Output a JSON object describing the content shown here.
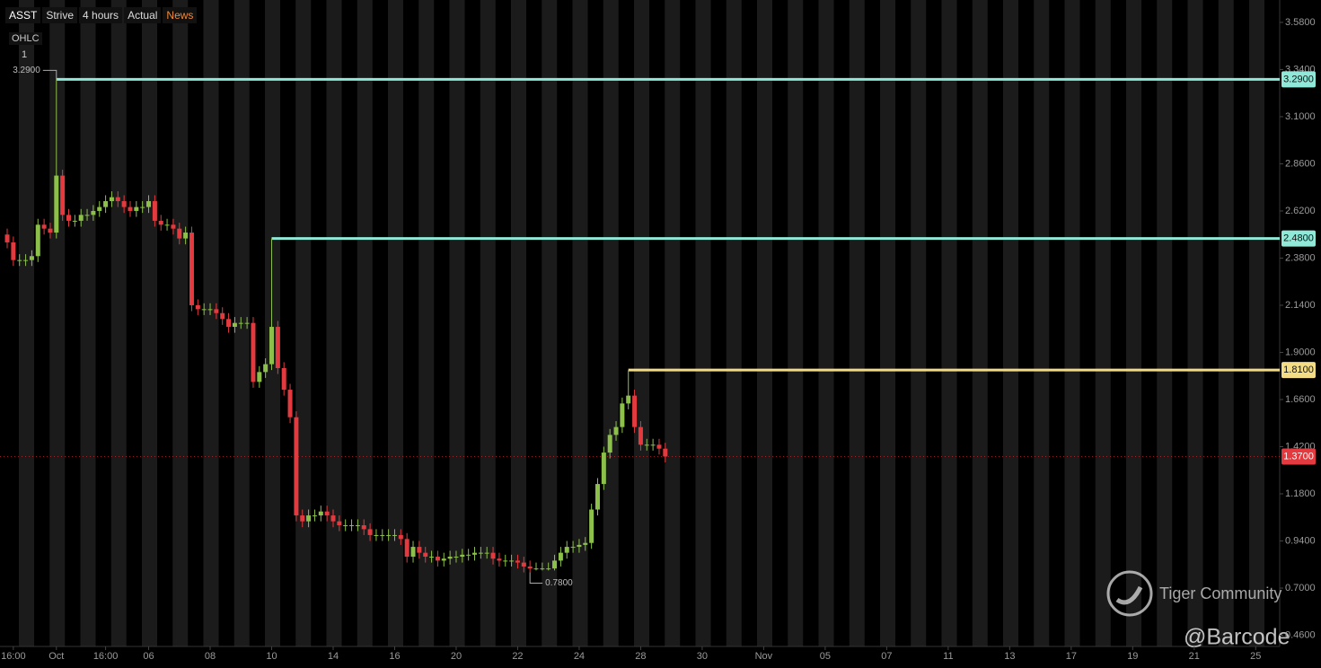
{
  "header": {
    "symbol": "ASST",
    "name": "Strive",
    "interval": "4 hours",
    "mode": "Actual",
    "news": "News",
    "indicator": "OHLC",
    "pane": "1"
  },
  "watermark": {
    "brand": "Tiger Community",
    "handle": "@Barcode"
  },
  "chart_data": {
    "type": "candlestick",
    "up_color": "#8cc04a",
    "down_color": "#e23a3e",
    "xlim": [
      -1.17,
      206.9
    ],
    "xticks": [
      {
        "value": 1,
        "label": "16:00"
      },
      {
        "value": 8,
        "label": "Oct"
      },
      {
        "value": 16,
        "label": "16:00"
      },
      {
        "value": 23,
        "label": "06"
      },
      {
        "value": 33,
        "label": "08"
      },
      {
        "value": 43,
        "label": "10"
      },
      {
        "value": 53,
        "label": "14"
      },
      {
        "value": 63,
        "label": "16"
      },
      {
        "value": 73,
        "label": "20"
      },
      {
        "value": 83,
        "label": "22"
      },
      {
        "value": 93,
        "label": "24"
      },
      {
        "value": 103,
        "label": "28"
      },
      {
        "value": 113,
        "label": "30"
      },
      {
        "value": 123,
        "label": "Nov"
      },
      {
        "value": 133,
        "label": "05"
      },
      {
        "value": 143,
        "label": "07"
      },
      {
        "value": 153,
        "label": "11"
      },
      {
        "value": 163,
        "label": "13"
      },
      {
        "value": 173,
        "label": "17"
      },
      {
        "value": 183,
        "label": "19"
      },
      {
        "value": 193,
        "label": "21"
      },
      {
        "value": 203,
        "label": "25"
      }
    ],
    "ylim": [
      0.403,
      3.694
    ],
    "yticks": [
      {
        "value": 3.58,
        "label": "3.5800"
      },
      {
        "value": 3.34,
        "label": "3.3400"
      },
      {
        "value": 3.1,
        "label": "3.1000"
      },
      {
        "value": 2.86,
        "label": "2.8600"
      },
      {
        "value": 2.62,
        "label": "2.6200"
      },
      {
        "value": 2.38,
        "label": "2.3800"
      },
      {
        "value": 2.14,
        "label": "2.1400"
      },
      {
        "value": 1.9,
        "label": "1.9000"
      },
      {
        "value": 1.66,
        "label": "1.6600"
      },
      {
        "value": 1.42,
        "label": "1.4200"
      },
      {
        "value": 1.18,
        "label": "1.1800"
      },
      {
        "value": 0.94,
        "label": "0.9400"
      },
      {
        "value": 0.7,
        "label": "0.7000"
      },
      {
        "value": 0.46,
        "label": "0.4600"
      }
    ],
    "open": [
      2.5,
      2.46,
      2.37,
      2.37,
      2.37,
      2.39,
      2.55,
      2.53,
      2.51,
      2.8,
      2.6,
      2.57,
      2.57,
      2.6,
      2.6,
      2.62,
      2.64,
      2.67,
      2.69,
      2.67,
      2.64,
      2.62,
      2.64,
      2.64,
      2.67,
      2.57,
      2.55,
      2.55,
      2.53,
      2.48,
      2.51,
      2.14,
      2.12,
      2.12,
      2.12,
      2.1,
      2.07,
      2.03,
      2.05,
      2.05,
      2.05,
      1.75,
      1.8,
      1.84,
      2.03,
      1.82,
      1.71,
      1.57,
      1.07,
      1.04,
      1.07,
      1.07,
      1.09,
      1.07,
      1.04,
      1.02,
      1.02,
      1.02,
      1.02,
      1.0,
      0.97,
      0.97,
      0.97,
      0.97,
      0.97,
      0.95,
      0.86,
      0.91,
      0.88,
      0.86,
      0.86,
      0.84,
      0.85,
      0.86,
      0.86,
      0.87,
      0.87,
      0.88,
      0.88,
      0.88,
      0.85,
      0.84,
      0.84,
      0.84,
      0.83,
      0.81,
      0.8,
      0.8,
      0.8,
      0.8,
      0.84,
      0.88,
      0.91,
      0.91,
      0.92,
      0.93,
      1.1,
      1.23,
      1.39,
      1.48,
      1.52,
      1.64,
      1.68,
      1.52,
      1.43,
      1.43,
      1.43,
      1.41
    ],
    "high": [
      2.53,
      2.49,
      2.4,
      2.4,
      2.42,
      2.58,
      2.58,
      2.56,
      3.29,
      2.83,
      2.63,
      2.6,
      2.63,
      2.63,
      2.65,
      2.67,
      2.7,
      2.72,
      2.72,
      2.7,
      2.67,
      2.67,
      2.67,
      2.7,
      2.7,
      2.6,
      2.58,
      2.58,
      2.56,
      2.54,
      2.54,
      2.17,
      2.15,
      2.15,
      2.15,
      2.13,
      2.1,
      2.08,
      2.08,
      2.08,
      2.08,
      1.83,
      1.87,
      2.48,
      2.06,
      1.85,
      1.74,
      1.6,
      1.1,
      1.1,
      1.1,
      1.12,
      1.12,
      1.1,
      1.07,
      1.05,
      1.05,
      1.05,
      1.05,
      1.03,
      1.0,
      1.0,
      1.0,
      1.0,
      1.0,
      0.98,
      0.94,
      0.94,
      0.91,
      0.89,
      0.89,
      0.88,
      0.89,
      0.89,
      0.9,
      0.9,
      0.91,
      0.91,
      0.91,
      0.91,
      0.88,
      0.87,
      0.87,
      0.87,
      0.86,
      0.84,
      0.83,
      0.83,
      0.83,
      0.87,
      0.91,
      0.94,
      0.94,
      0.95,
      0.96,
      1.13,
      1.26,
      1.42,
      1.51,
      1.55,
      1.67,
      1.81,
      1.71,
      1.55,
      1.46,
      1.46,
      1.46,
      1.44
    ],
    "low": [
      2.43,
      2.34,
      2.34,
      2.34,
      2.34,
      2.36,
      2.5,
      2.48,
      2.48,
      2.57,
      2.54,
      2.54,
      2.54,
      2.57,
      2.57,
      2.59,
      2.61,
      2.64,
      2.64,
      2.61,
      2.59,
      2.59,
      2.61,
      2.61,
      2.54,
      2.52,
      2.52,
      2.5,
      2.45,
      2.45,
      2.11,
      2.09,
      2.09,
      2.09,
      2.07,
      2.04,
      2.0,
      2.0,
      2.02,
      2.02,
      1.72,
      1.72,
      1.77,
      1.81,
      1.79,
      1.68,
      1.54,
      1.04,
      1.01,
      1.01,
      1.04,
      1.04,
      1.04,
      1.01,
      0.99,
      0.99,
      0.99,
      0.99,
      0.97,
      0.94,
      0.94,
      0.94,
      0.94,
      0.94,
      0.92,
      0.83,
      0.83,
      0.85,
      0.83,
      0.83,
      0.81,
      0.81,
      0.82,
      0.83,
      0.83,
      0.84,
      0.84,
      0.85,
      0.85,
      0.82,
      0.81,
      0.81,
      0.81,
      0.8,
      0.78,
      0.78,
      0.79,
      0.79,
      0.79,
      0.79,
      0.81,
      0.85,
      0.88,
      0.88,
      0.89,
      0.9,
      1.07,
      1.2,
      1.36,
      1.45,
      1.49,
      1.61,
      1.49,
      1.4,
      1.4,
      1.4,
      1.38,
      1.34
    ],
    "close": [
      2.46,
      2.37,
      2.37,
      2.37,
      2.39,
      2.55,
      2.53,
      2.51,
      2.8,
      2.6,
      2.57,
      2.57,
      2.6,
      2.6,
      2.62,
      2.64,
      2.67,
      2.69,
      2.67,
      2.64,
      2.62,
      2.64,
      2.64,
      2.67,
      2.57,
      2.55,
      2.55,
      2.53,
      2.48,
      2.51,
      2.14,
      2.12,
      2.12,
      2.12,
      2.1,
      2.07,
      2.03,
      2.05,
      2.05,
      2.05,
      1.75,
      1.8,
      1.84,
      2.03,
      1.82,
      1.71,
      1.57,
      1.07,
      1.04,
      1.07,
      1.07,
      1.09,
      1.07,
      1.04,
      1.02,
      1.02,
      1.02,
      1.02,
      1.0,
      0.97,
      0.97,
      0.97,
      0.97,
      0.97,
      0.95,
      0.86,
      0.91,
      0.88,
      0.86,
      0.86,
      0.84,
      0.85,
      0.86,
      0.86,
      0.87,
      0.87,
      0.88,
      0.88,
      0.88,
      0.85,
      0.84,
      0.84,
      0.84,
      0.83,
      0.81,
      0.8,
      0.8,
      0.8,
      0.8,
      0.84,
      0.88,
      0.91,
      0.91,
      0.92,
      0.93,
      1.1,
      1.23,
      1.39,
      1.48,
      1.52,
      1.64,
      1.68,
      1.52,
      1.43,
      1.43,
      1.43,
      1.41,
      1.37
    ],
    "levels": [
      {
        "value": 3.29,
        "label": "3.2900",
        "color": "#8fe8d8",
        "start": 8
      },
      {
        "value": 2.48,
        "label": "2.4800",
        "color": "#8fe8d8",
        "start": 43
      },
      {
        "value": 1.81,
        "label": "1.8100",
        "color": "#f2dc86",
        "start": 101
      }
    ],
    "last_price": {
      "value": 1.37,
      "label": "1.3700",
      "color": "#e23a3e"
    },
    "annotations": [
      {
        "x": 8,
        "value": 3.29,
        "label": "3.2900"
      },
      {
        "x": 85,
        "value": 0.78,
        "label": "0.7800"
      }
    ]
  }
}
